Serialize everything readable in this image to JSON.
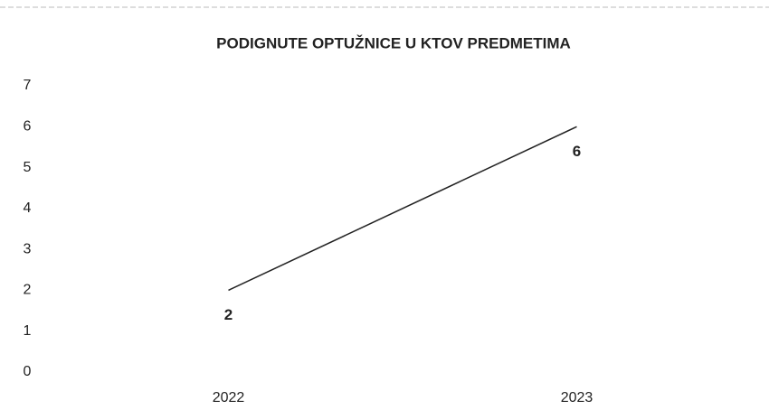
{
  "chart_data": {
    "type": "line",
    "title": "PODIGNUTE OPTUŽNICE U KTOV PREDMETIMA",
    "categories": [
      "2022",
      "2023"
    ],
    "values": [
      2,
      6
    ],
    "color": "#222222",
    "ylim": [
      0,
      7
    ],
    "yticks": [
      0,
      1,
      2,
      3,
      4,
      5,
      6,
      7
    ],
    "grid": false
  }
}
